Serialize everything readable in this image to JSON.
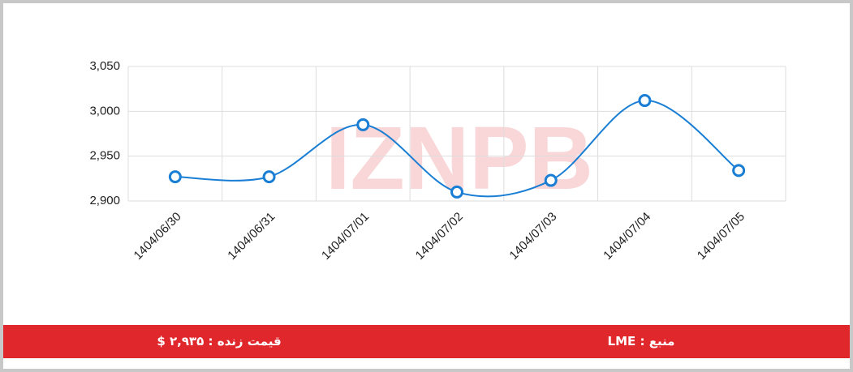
{
  "chart_data": {
    "type": "line",
    "watermark": "IZNPB",
    "categories": [
      "1404/06/30",
      "1404/06/31",
      "1404/07/01",
      "1404/07/02",
      "1404/07/03",
      "1404/07/04",
      "1404/07/05"
    ],
    "series": [
      {
        "name": "price",
        "color": "#1a7fd4",
        "values": [
          2927,
          2927,
          2985,
          2910,
          2923,
          3012,
          2934
        ]
      }
    ],
    "ylim": [
      2900,
      3050
    ],
    "yticks": [
      {
        "value": 2900,
        "label": "2,900"
      },
      {
        "value": 2950,
        "label": "2,950"
      },
      {
        "value": 3000,
        "label": "3,000"
      },
      {
        "value": 3050,
        "label": "3,050"
      }
    ],
    "grid": true
  },
  "footer": {
    "live_price": "قیمت زنده : ۲,۹۳۵ $",
    "source": "منبع : LME"
  }
}
